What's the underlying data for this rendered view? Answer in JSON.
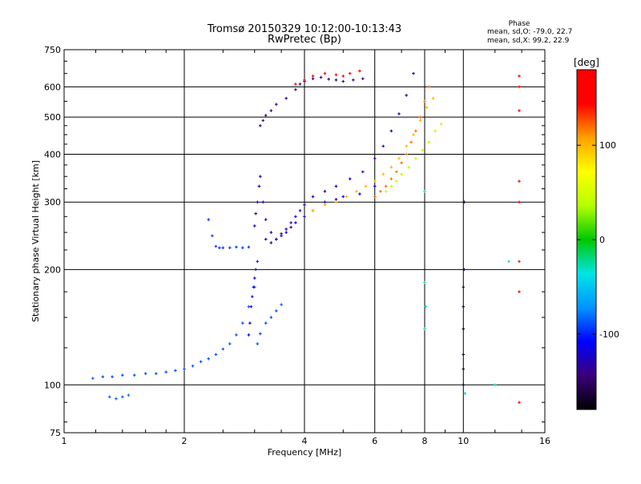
{
  "chart_data": {
    "type": "scatter",
    "title": "Tromsø 20150329 10:12:00-10:13:43",
    "subtitle": "RwPretec (Bp)",
    "xlabel": "Frequency [MHz]",
    "ylabel": "Stationary phase Virtual Height [km]",
    "x_scale": "log",
    "y_scale": "log",
    "xlim": [
      1,
      16
    ],
    "ylim": [
      75,
      750
    ],
    "x_ticks": [
      "1",
      "2",
      "4",
      "6",
      "8",
      "10",
      "16"
    ],
    "y_ticks": [
      "75",
      "100",
      "200",
      "300",
      "400",
      "500",
      "600",
      "750"
    ],
    "grid": true,
    "stats": {
      "header": "Phase",
      "line_o": "mean, sd,O: -79.0, 22.7",
      "line_x": "mean, sd,X:  99.2, 22.9"
    },
    "colorbar": {
      "label": "[deg]",
      "range": [
        -180,
        180
      ],
      "ticks": [
        "100",
        "0",
        "-100"
      ],
      "colors": [
        "#000000",
        "#3a007a",
        "#0000ff",
        "#0094ff",
        "#00e5e5",
        "#00c800",
        "#b4ff00",
        "#ffff00",
        "#ffa000",
        "#ff0000",
        "#ff0000"
      ]
    },
    "series": [
      {
        "phase": -90,
        "x": [
          1.18,
          1.25,
          1.32,
          1.4,
          1.5,
          1.6,
          1.7,
          1.8,
          1.9,
          2.0,
          2.1,
          2.2,
          2.3,
          2.4,
          2.5,
          2.6,
          2.7,
          2.8,
          2.9,
          3.0
        ],
        "y": [
          104,
          105,
          105,
          106,
          106,
          107,
          107,
          108,
          109,
          110,
          112,
          115,
          117,
          120,
          124,
          128,
          135,
          145,
          160,
          180
        ]
      },
      {
        "phase": -85,
        "x": [
          1.3,
          1.35,
          1.4,
          1.45
        ],
        "y": [
          93,
          92,
          93,
          94
        ]
      },
      {
        "phase": -90,
        "x": [
          3.05,
          3.1,
          3.2,
          3.3,
          3.4,
          3.5
        ],
        "y": [
          128,
          136,
          145,
          150,
          156,
          162
        ]
      },
      {
        "phase": -110,
        "x": [
          2.9,
          2.92,
          2.94,
          2.96,
          2.98,
          3.0,
          3.02,
          3.05
        ],
        "y": [
          135,
          145,
          160,
          170,
          180,
          190,
          200,
          210
        ]
      },
      {
        "phase": -95,
        "x": [
          2.3,
          2.35,
          2.4,
          2.45,
          2.5,
          2.6,
          2.7,
          2.8,
          2.9
        ],
        "y": [
          270,
          245,
          230,
          228,
          228,
          228,
          229,
          228,
          229
        ]
      },
      {
        "phase": -120,
        "x": [
          3.0,
          3.02,
          3.05,
          3.08,
          3.1,
          3.15,
          3.2,
          3.3,
          3.4,
          3.5,
          3.6,
          3.7,
          3.8,
          4.0,
          4.2,
          4.5,
          4.8,
          5.0,
          5.5,
          6.0
        ],
        "y": [
          260,
          280,
          300,
          330,
          350,
          300,
          270,
          250,
          240,
          245,
          250,
          258,
          265,
          275,
          285,
          300,
          305,
          310,
          315,
          330
        ]
      },
      {
        "phase": -130,
        "x": [
          3.2,
          3.3,
          3.4,
          3.5,
          3.6,
          3.7,
          3.8,
          3.9,
          4.0,
          4.2,
          4.5,
          4.8,
          5.2,
          5.6,
          6.0,
          6.3,
          6.6,
          6.9,
          7.2,
          7.5
        ],
        "y": [
          240,
          235,
          240,
          248,
          255,
          265,
          275,
          285,
          295,
          310,
          320,
          330,
          345,
          360,
          390,
          420,
          460,
          510,
          570,
          650
        ]
      },
      {
        "phase": -140,
        "x": [
          3.1,
          3.15,
          3.2,
          3.3,
          3.4,
          3.6,
          3.8,
          3.9,
          4.0,
          4.2,
          4.4,
          4.6,
          4.8,
          5.0,
          5.3,
          5.6
        ],
        "y": [
          475,
          490,
          505,
          520,
          540,
          560,
          590,
          610,
          620,
          630,
          635,
          628,
          625,
          620,
          625,
          630
        ]
      },
      {
        "phase": 100,
        "x": [
          4.2,
          4.5,
          4.8,
          5.1,
          5.4,
          5.7,
          6.0,
          6.3,
          6.6,
          6.9,
          7.2,
          7.5,
          7.8,
          8.1,
          8.4
        ],
        "y": [
          285,
          295,
          300,
          310,
          320,
          330,
          340,
          355,
          370,
          390,
          420,
          450,
          490,
          530,
          560
        ]
      },
      {
        "phase": 120,
        "x": [
          6.0,
          6.2,
          6.4,
          6.6,
          6.8,
          7.0,
          7.2,
          7.4,
          7.6,
          7.8,
          8.0,
          8.2
        ],
        "y": [
          310,
          320,
          330,
          345,
          360,
          380,
          400,
          430,
          460,
          500,
          550,
          600
        ]
      },
      {
        "phase": 40,
        "x": [
          6.4,
          6.6,
          6.8,
          7.0,
          7.3,
          7.6,
          7.9,
          8.2,
          8.5,
          8.8
        ],
        "y": [
          320,
          330,
          340,
          355,
          370,
          390,
          410,
          430,
          460,
          480
        ]
      },
      {
        "phase": 150,
        "x": [
          3.8,
          4.0,
          4.2,
          4.5,
          4.8,
          5.0,
          5.2,
          5.5
        ],
        "y": [
          610,
          625,
          640,
          650,
          645,
          640,
          650,
          660
        ]
      },
      {
        "phase": -160,
        "x": [
          10.0,
          10.0,
          10.0,
          10.0,
          10.0,
          10.0,
          10.05,
          10.05
        ],
        "y": [
          100,
          110,
          120,
          140,
          160,
          180,
          200,
          300
        ]
      },
      {
        "phase": 150,
        "x": [
          13.8,
          13.8,
          13.8,
          13.8,
          13.8,
          13.8,
          13.8,
          13.8
        ],
        "y": [
          90,
          175,
          210,
          300,
          340,
          520,
          600,
          640
        ]
      },
      {
        "phase": -30,
        "x": [
          8.0,
          8.0,
          8.05,
          8.0,
          10.1,
          12.0,
          13.0
        ],
        "y": [
          185,
          140,
          160,
          320,
          95,
          100,
          210
        ]
      }
    ]
  }
}
